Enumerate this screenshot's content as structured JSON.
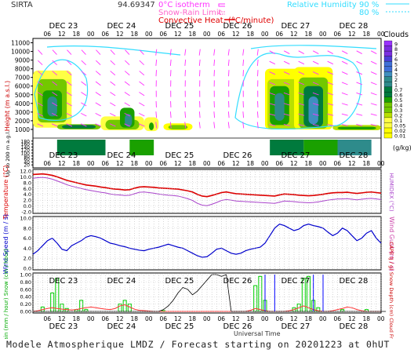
{
  "header": {
    "station": "SIRTA",
    "station_code": "94.69347",
    "legend_left": [
      {
        "label": "0°C isotherm",
        "color": "#ff33ff"
      },
      {
        "label": "Snow-Rain Limit",
        "color": "#ff66cc"
      },
      {
        "label": "Convective Heat. (°C/minute)",
        "color": "#e00000"
      }
    ],
    "legend_right": [
      {
        "label": "Relative Humidity",
        "color": "#33ddff",
        "v1": "90 %",
        "v2": "80 %"
      }
    ]
  },
  "time_axis": {
    "days": [
      "DEC 23",
      "DEC 24",
      "DEC 25",
      "DEC 26",
      "DEC 27",
      "DEC 28"
    ],
    "hours": [
      "06",
      "12",
      "18",
      "00"
    ],
    "xlabel": "Universal Time"
  },
  "colors": {
    "cloud_scale": [
      "#ffff00",
      "#ffff44",
      "#b8e000",
      "#73c800",
      "#1aa000",
      "#007a3d",
      "#2e8b8b",
      "#3f8fbf",
      "#3f6fd8",
      "#4b3fd8",
      "#7a2fe0",
      "#9933ff"
    ],
    "wind_arrow": "#ff33ff",
    "rh_contour": "#33ddff",
    "temp": "#dd0000",
    "humidex": "#aa44cc",
    "wind": "#0000cc",
    "gust": "#cc44aa",
    "rain": "#00cc00",
    "snow": "#0000ff",
    "cape": "#000000",
    "convective": "#ff3333"
  },
  "chart_data": [
    {
      "type": "heatmap",
      "title": "Clouds",
      "ylabel": "Height (m a.s.l.)",
      "ylabel_lower": "Up to 200 m a.g.l.",
      "ylim": [
        0,
        11500
      ],
      "yticks": [
        1000,
        2000,
        3000,
        4000,
        5000,
        6000,
        7000,
        8000,
        9000,
        10000,
        11000
      ],
      "lower_yticks": [
        20,
        40,
        60,
        80,
        100,
        120,
        140,
        160,
        180
      ],
      "colorbar": {
        "unit": "(g/kg)",
        "labels": [
          "0.01",
          "0.02",
          "0.05",
          "0.1",
          "0.2",
          "0.3",
          "0.4",
          "0.5",
          "0.6",
          "0.7",
          "1",
          "2",
          "3",
          "4",
          "5",
          "6",
          "7",
          "8",
          "9"
        ]
      }
    },
    {
      "type": "line",
      "ylabel_left": "Temperature (°C)",
      "ylabel_right": "HUMIDEX (°C)",
      "ylim": [
        -2,
        12
      ],
      "yticks": [
        "12.0",
        "10.0",
        "8.0",
        "6.0",
        "4.0",
        "2.0",
        "0.0",
        "-2.0"
      ],
      "series": [
        {
          "name": "Temperature",
          "values": [
            10.8,
            10.9,
            11.0,
            10.8,
            10.5,
            10.0,
            9.4,
            8.8,
            8.4,
            8.0,
            7.6,
            7.2,
            7.0,
            6.8,
            6.5,
            6.3,
            6.0,
            5.8,
            5.7,
            5.5,
            5.6,
            6.1,
            6.5,
            6.6,
            6.5,
            6.4,
            6.2,
            6.1,
            6.0,
            5.9,
            5.8,
            5.5,
            5.2,
            4.8,
            4.0,
            3.4,
            3.2,
            3.6,
            4.1,
            4.6,
            4.8,
            4.5,
            4.2,
            4.1,
            4.0,
            3.9,
            3.8,
            3.7,
            3.6,
            3.5,
            3.4,
            3.8,
            4.1,
            4.0,
            3.9,
            3.7,
            3.6,
            3.5,
            3.6,
            3.8,
            4.0,
            4.3,
            4.5,
            4.6,
            4.6,
            4.7,
            4.5,
            4.3,
            4.5,
            4.7,
            4.8,
            4.6,
            4.4
          ]
        },
        {
          "name": "Humidex",
          "values": [
            9.5,
            9.7,
            9.8,
            9.6,
            9.2,
            8.6,
            8.0,
            7.3,
            6.8,
            6.4,
            6.0,
            5.6,
            5.3,
            5.0,
            4.7,
            4.5,
            4.1,
            3.9,
            3.8,
            3.6,
            3.7,
            4.2,
            4.7,
            4.8,
            4.6,
            4.4,
            4.1,
            3.9,
            3.7,
            3.6,
            3.4,
            3.0,
            2.5,
            1.9,
            0.9,
            0.3,
            0.1,
            0.6,
            1.2,
            1.9,
            2.2,
            2.0,
            1.7,
            1.6,
            1.5,
            1.4,
            1.3,
            1.2,
            1.1,
            1.0,
            0.9,
            1.3,
            1.7,
            1.6,
            1.5,
            1.3,
            1.2,
            1.1,
            1.2,
            1.4,
            1.7,
            2.0,
            2.2,
            2.4,
            2.4,
            2.5,
            2.3,
            2.1,
            2.3,
            2.5,
            2.6,
            2.4,
            2.2
          ]
        }
      ]
    },
    {
      "type": "line",
      "ylabel_left": "Wind Speed (m / s)",
      "ylabel_right": "Wind Gust (m / s)",
      "ylim": [
        0,
        10
      ],
      "yticks": [
        "10.0",
        "8.0",
        "6.0",
        "4.0",
        "2.0",
        "0.0"
      ],
      "series": [
        {
          "name": "Wind Speed",
          "values": [
            2.8,
            3.5,
            4.5,
            5.5,
            6.0,
            5.0,
            3.8,
            3.5,
            4.5,
            5.0,
            5.5,
            6.2,
            6.5,
            6.3,
            6.0,
            5.5,
            5.0,
            4.8,
            4.5,
            4.3,
            4.0,
            3.8,
            3.6,
            3.5,
            3.8,
            4.0,
            4.2,
            4.5,
            4.8,
            4.5,
            4.2,
            4.0,
            3.5,
            3.0,
            2.5,
            2.2,
            2.3,
            3.0,
            3.8,
            4.0,
            3.5,
            3.0,
            2.8,
            3.0,
            3.5,
            3.8,
            4.0,
            4.2,
            5.0,
            6.5,
            8.0,
            8.8,
            8.5,
            8.0,
            7.5,
            7.8,
            8.5,
            8.8,
            8.5,
            8.3,
            8.0,
            7.2,
            6.5,
            7.0,
            8.0,
            7.5,
            6.5,
            5.5,
            6.0,
            7.0,
            7.5,
            6.0,
            5.0
          ]
        }
      ]
    },
    {
      "type": "bar",
      "ylabel_left": "Rain (mm / hour)  Snow (cm / hour)",
      "ylabel_right": "CAPE (J / g)  Snow Depth (cm)  Cloud Fraction",
      "ylim": [
        0,
        1
      ],
      "yticks": [
        "1.00",
        "0.80",
        "0.60",
        "0.40",
        "0.20",
        "0.00"
      ],
      "series": [
        {
          "name": "Rain",
          "values": [
            0,
            0,
            0.12,
            0,
            0.5,
            0.9,
            0.2,
            0.08,
            0,
            0.05,
            0.3,
            0.05,
            0,
            0,
            0,
            0,
            0,
            0,
            0.2,
            0.3,
            0.2,
            0,
            0,
            0,
            0,
            0,
            0,
            0.02,
            0,
            0,
            0,
            0,
            0,
            0,
            0,
            0,
            0,
            0,
            0,
            0,
            0,
            0,
            0,
            0,
            0,
            0,
            0.7,
            0.95,
            0.3,
            0,
            0,
            0,
            0,
            0,
            0.1,
            0.2,
            0.9,
            0.95,
            0.3,
            0.1,
            0,
            0,
            0,
            0,
            0.05,
            0,
            0,
            0,
            0,
            0.05,
            0,
            0,
            0
          ]
        },
        {
          "name": "Convective heating",
          "values": [
            0,
            0.02,
            0.05,
            0.08,
            0.1,
            0.08,
            0.06,
            0.05,
            0.04,
            0.05,
            0.08,
            0.1,
            0.12,
            0.1,
            0.08,
            0.06,
            0.05,
            0.08,
            0.15,
            0.18,
            0.12,
            0.06,
            0.03,
            0.02,
            0.01,
            0,
            0,
            0,
            0,
            0,
            0,
            0,
            0,
            0,
            0,
            0,
            0,
            0,
            0,
            0,
            0,
            0,
            0,
            0,
            0,
            0.03,
            0.08,
            0.05,
            0.02,
            0,
            0,
            0,
            0,
            0.02,
            0.05,
            0.1,
            0.15,
            0.1,
            0.05,
            0.02,
            0,
            0,
            0.02,
            0.05,
            0.08,
            0.12,
            0.1,
            0.05,
            0.02,
            0,
            0,
            0,
            0
          ]
        },
        {
          "name": "Cloud Fraction",
          "values": [
            0,
            0,
            0,
            0,
            0,
            0,
            0,
            0,
            0,
            0,
            0,
            0,
            0,
            0,
            0,
            0,
            0,
            0,
            0,
            0,
            0,
            0,
            0,
            0,
            0,
            0,
            0,
            0.05,
            0.15,
            0.3,
            0.5,
            0.65,
            0.6,
            0.45,
            0.55,
            0.7,
            0.85,
            1.0,
            1.0,
            0.95,
            1.0,
            0,
            0,
            0,
            0,
            0,
            0,
            0,
            0,
            0,
            0,
            0,
            0,
            0,
            0,
            0,
            0,
            0,
            0,
            0,
            0,
            0,
            0,
            0,
            0,
            0,
            0,
            0,
            0,
            0,
            0,
            0,
            0,
            0
          ]
        }
      ]
    }
  ],
  "footer": "Modele Atmospherique LMDZ / Forecast starting on 20201223 at 0hUT"
}
